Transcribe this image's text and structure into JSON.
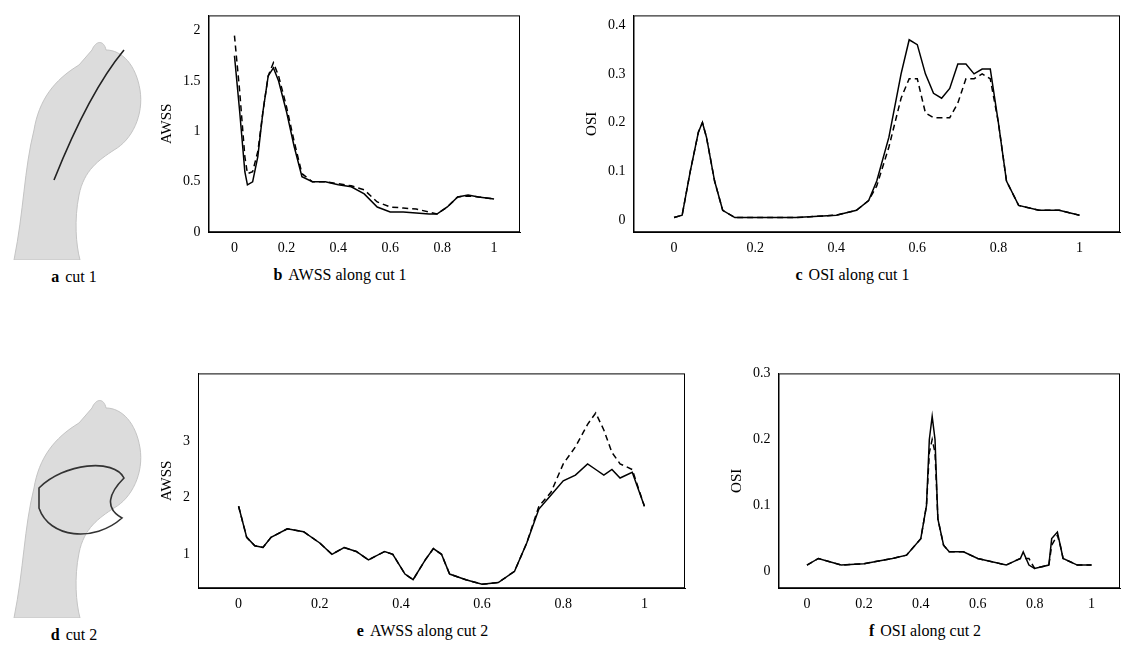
{
  "images": [
    {
      "letter": "a",
      "title": "cut 1"
    },
    {
      "letter": "d",
      "title": "cut 2"
    }
  ],
  "chart_data": [
    {
      "type": "line",
      "letter": "b",
      "title": "AWSS along cut 1",
      "ylabel": "AWSS",
      "grid": false,
      "xlim": [
        -0.1,
        1.1
      ],
      "xticks": [
        0,
        0.2,
        0.4,
        0.6,
        0.8,
        1
      ],
      "ylim": [
        0,
        2.15
      ],
      "yticks": [
        0,
        0.5,
        1,
        1.5,
        2
      ],
      "x": [
        0,
        0.02,
        0.04,
        0.05,
        0.07,
        0.09,
        0.11,
        0.13,
        0.15,
        0.17,
        0.2,
        0.23,
        0.26,
        0.3,
        0.35,
        0.4,
        0.45,
        0.5,
        0.55,
        0.6,
        0.65,
        0.7,
        0.75,
        0.78,
        0.82,
        0.86,
        0.9,
        0.94,
        0.97,
        1
      ],
      "series": [
        {
          "color": "#000000",
          "line_style": "solid",
          "values": [
            1.75,
            1.2,
            0.6,
            0.47,
            0.5,
            0.75,
            1.2,
            1.55,
            1.63,
            1.5,
            1.2,
            0.85,
            0.55,
            0.5,
            0.5,
            0.47,
            0.45,
            0.38,
            0.25,
            0.2,
            0.2,
            0.19,
            0.18,
            0.18,
            0.25,
            0.35,
            0.37,
            0.35,
            0.34,
            0.33
          ]
        },
        {
          "color": "#000000",
          "line_style": "dashed",
          "values": [
            1.95,
            1.4,
            0.75,
            0.58,
            0.6,
            0.8,
            1.2,
            1.55,
            1.68,
            1.55,
            1.25,
            0.9,
            0.58,
            0.5,
            0.5,
            0.48,
            0.46,
            0.42,
            0.3,
            0.25,
            0.24,
            0.23,
            0.2,
            0.18,
            0.25,
            0.35,
            0.36,
            0.35,
            0.34,
            0.33
          ]
        }
      ]
    },
    {
      "type": "line",
      "letter": "c",
      "title": "OSI along cut 1",
      "ylabel": "OSI",
      "grid": false,
      "xlim": [
        -0.1,
        1.1
      ],
      "xticks": [
        0,
        0.2,
        0.4,
        0.6,
        0.8,
        1
      ],
      "ylim": [
        -0.025,
        0.42
      ],
      "yticks": [
        0,
        0.1,
        0.2,
        0.3,
        0.4
      ],
      "x": [
        0,
        0.02,
        0.04,
        0.06,
        0.07,
        0.08,
        0.1,
        0.12,
        0.15,
        0.2,
        0.3,
        0.4,
        0.45,
        0.48,
        0.5,
        0.53,
        0.56,
        0.58,
        0.6,
        0.62,
        0.64,
        0.66,
        0.68,
        0.7,
        0.72,
        0.74,
        0.76,
        0.78,
        0.8,
        0.82,
        0.85,
        0.9,
        0.95,
        1
      ],
      "series": [
        {
          "color": "#000000",
          "line_style": "solid",
          "values": [
            0.005,
            0.01,
            0.1,
            0.18,
            0.2,
            0.17,
            0.08,
            0.02,
            0.005,
            0.005,
            0.005,
            0.01,
            0.02,
            0.04,
            0.08,
            0.17,
            0.3,
            0.37,
            0.36,
            0.3,
            0.26,
            0.25,
            0.27,
            0.32,
            0.32,
            0.3,
            0.31,
            0.31,
            0.2,
            0.08,
            0.03,
            0.02,
            0.02,
            0.01
          ]
        },
        {
          "color": "#000000",
          "line_style": "dashed",
          "values": [
            0.005,
            0.01,
            0.1,
            0.18,
            0.2,
            0.17,
            0.08,
            0.02,
            0.005,
            0.005,
            0.005,
            0.01,
            0.02,
            0.04,
            0.07,
            0.15,
            0.25,
            0.29,
            0.29,
            0.22,
            0.21,
            0.21,
            0.21,
            0.24,
            0.29,
            0.29,
            0.3,
            0.29,
            0.2,
            0.08,
            0.03,
            0.02,
            0.02,
            0.01
          ]
        }
      ]
    },
    {
      "type": "line",
      "letter": "e",
      "title": "AWSS along cut 2",
      "ylabel": "AWSS",
      "grid": false,
      "xlim": [
        -0.1,
        1.1
      ],
      "xticks": [
        0,
        0.2,
        0.4,
        0.6,
        0.8,
        1
      ],
      "ylim": [
        0.4,
        4.2
      ],
      "yticks": [
        1,
        2,
        3
      ],
      "x": [
        0,
        0.02,
        0.04,
        0.06,
        0.08,
        0.12,
        0.16,
        0.2,
        0.23,
        0.26,
        0.29,
        0.32,
        0.36,
        0.38,
        0.41,
        0.43,
        0.46,
        0.48,
        0.5,
        0.52,
        0.56,
        0.6,
        0.64,
        0.68,
        0.71,
        0.74,
        0.77,
        0.8,
        0.83,
        0.86,
        0.88,
        0.9,
        0.92,
        0.94,
        0.97,
        1
      ],
      "series": [
        {
          "color": "#000000",
          "line_style": "solid",
          "values": [
            1.85,
            1.3,
            1.15,
            1.12,
            1.3,
            1.45,
            1.4,
            1.2,
            1.0,
            1.12,
            1.05,
            0.9,
            1.05,
            1.0,
            0.65,
            0.55,
            0.9,
            1.1,
            1.0,
            0.65,
            0.55,
            0.47,
            0.5,
            0.7,
            1.2,
            1.8,
            2.05,
            2.3,
            2.4,
            2.6,
            2.5,
            2.4,
            2.5,
            2.35,
            2.45,
            1.85
          ]
        },
        {
          "color": "#000000",
          "line_style": "dashed",
          "values": [
            1.85,
            1.3,
            1.15,
            1.12,
            1.3,
            1.45,
            1.4,
            1.2,
            1.0,
            1.12,
            1.05,
            0.9,
            1.05,
            1.0,
            0.65,
            0.55,
            0.9,
            1.1,
            1.0,
            0.65,
            0.55,
            0.47,
            0.5,
            0.7,
            1.2,
            1.85,
            2.1,
            2.6,
            2.9,
            3.3,
            3.5,
            3.2,
            2.8,
            2.6,
            2.5,
            1.85
          ]
        }
      ]
    },
    {
      "type": "line",
      "letter": "f",
      "title": "OSI along cut 2",
      "ylabel": "OSI",
      "grid": false,
      "xlim": [
        -0.1,
        1.1
      ],
      "xticks": [
        0,
        0.2,
        0.4,
        0.6,
        0.8,
        1
      ],
      "ylim": [
        -0.025,
        0.3
      ],
      "yticks": [
        0,
        0.1,
        0.2,
        0.3
      ],
      "x": [
        0,
        0.04,
        0.08,
        0.12,
        0.2,
        0.3,
        0.35,
        0.4,
        0.42,
        0.43,
        0.44,
        0.45,
        0.46,
        0.48,
        0.5,
        0.55,
        0.6,
        0.7,
        0.75,
        0.76,
        0.78,
        0.8,
        0.85,
        0.86,
        0.88,
        0.89,
        0.9,
        0.95,
        1
      ],
      "series": [
        {
          "color": "#000000",
          "line_style": "solid",
          "values": [
            0.01,
            0.02,
            0.015,
            0.01,
            0.012,
            0.02,
            0.025,
            0.05,
            0.1,
            0.2,
            0.235,
            0.2,
            0.08,
            0.04,
            0.03,
            0.03,
            0.02,
            0.01,
            0.02,
            0.03,
            0.01,
            0.005,
            0.01,
            0.05,
            0.06,
            0.04,
            0.02,
            0.01,
            0.01
          ]
        },
        {
          "color": "#000000",
          "line_style": "dashed",
          "values": [
            0.01,
            0.02,
            0.015,
            0.01,
            0.012,
            0.02,
            0.025,
            0.05,
            0.1,
            0.18,
            0.2,
            0.18,
            0.08,
            0.04,
            0.03,
            0.03,
            0.02,
            0.01,
            0.02,
            0.02,
            0.02,
            0.005,
            0.01,
            0.04,
            0.055,
            0.04,
            0.02,
            0.01,
            0.01
          ]
        }
      ]
    }
  ]
}
